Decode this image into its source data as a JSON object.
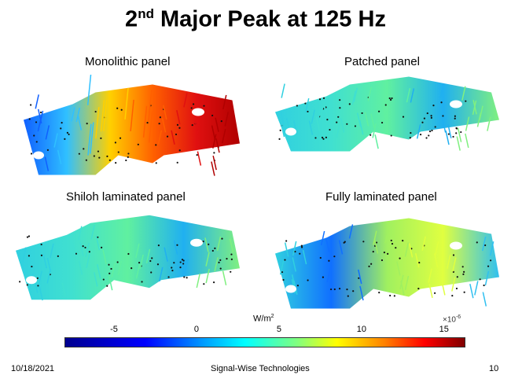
{
  "title": {
    "main": "2",
    "sup": "nd",
    "rest": " Major Peak at 125 Hz"
  },
  "panels": [
    {
      "label": "Monolithic panel",
      "palette": "hot"
    },
    {
      "label": "Patched panel",
      "palette": "cool"
    },
    {
      "label": "Shiloh laminated panel",
      "palette": "cool"
    },
    {
      "label": "Fully laminated panel",
      "palette": "mixed"
    }
  ],
  "colorbar": {
    "unit": "W/m",
    "unit_sup": "2",
    "exponent": "×10",
    "exponent_sup": "-6",
    "ticks": [
      "-5",
      "0",
      "5",
      "10",
      "15"
    ],
    "tick_values": [
      -5,
      0,
      5,
      10,
      15
    ],
    "range": [
      -8,
      16.2
    ]
  },
  "footer": {
    "date": "10/18/2021",
    "company": "Signal-Wise Technologies",
    "page": "10"
  }
}
